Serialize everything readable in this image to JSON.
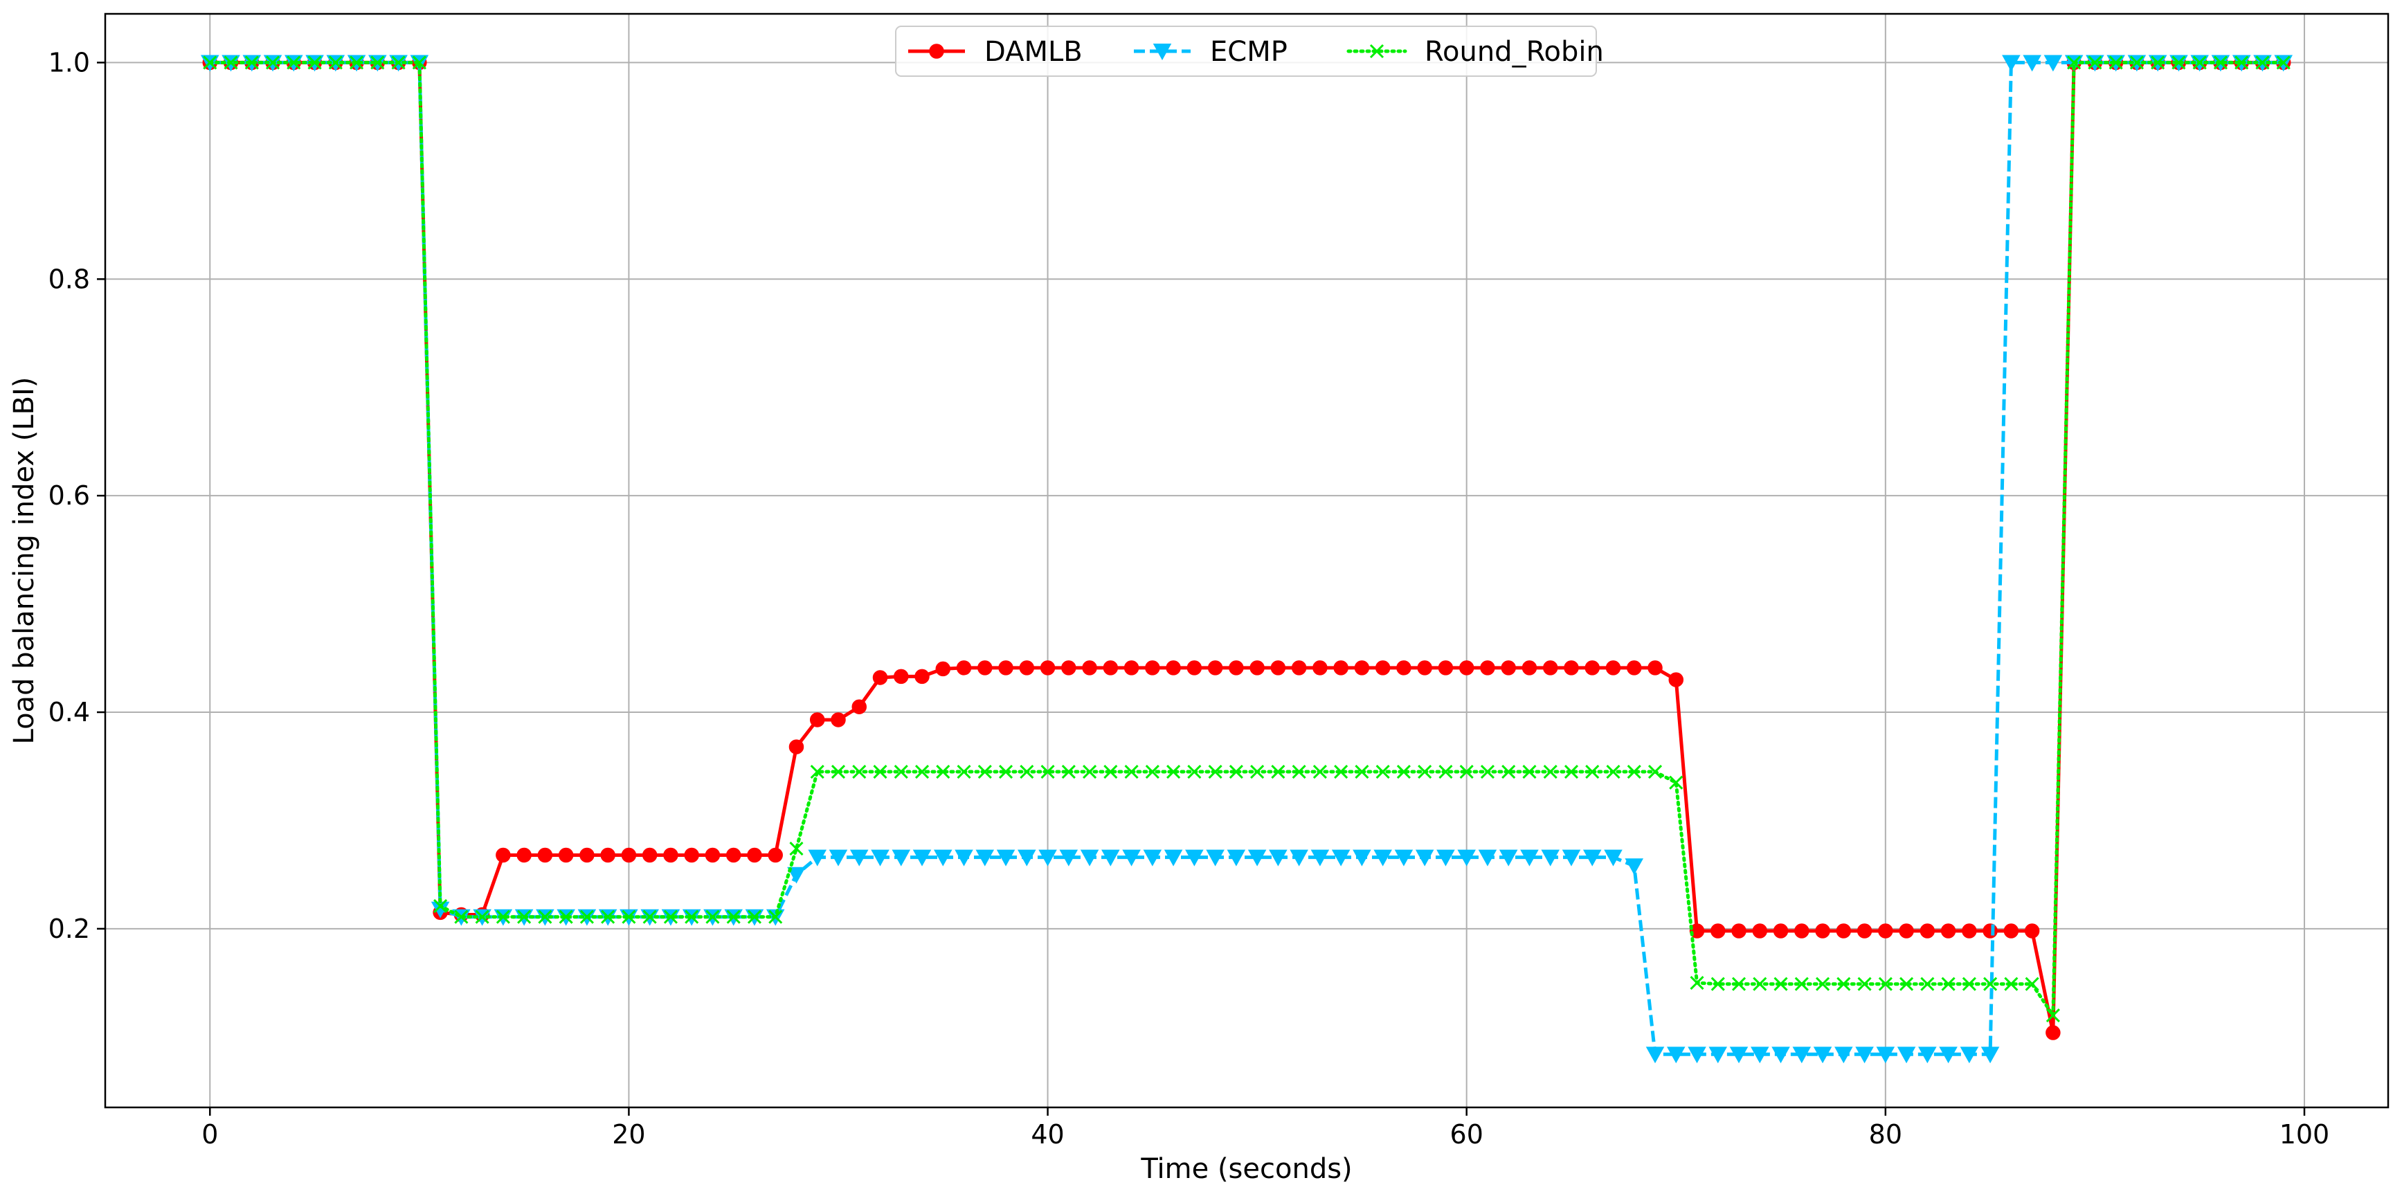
{
  "chart_data": {
    "type": "line",
    "xlabel": "Time (seconds)",
    "ylabel": "Load balancing index (LBI)",
    "xlim": [
      -5,
      104
    ],
    "ylim": [
      0.035,
      1.045
    ],
    "xticks": [
      0,
      20,
      40,
      60,
      80,
      100
    ],
    "yticks": [
      0.2,
      0.4,
      0.6,
      0.8,
      1.0
    ],
    "xtick_labels": [
      "0",
      "20",
      "40",
      "60",
      "80",
      "100"
    ],
    "ytick_labels": [
      "0.2",
      "0.4",
      "0.6",
      "0.8",
      "1.0"
    ],
    "grid": true,
    "legend_position": "top-center",
    "x": [
      0,
      1,
      2,
      3,
      4,
      5,
      6,
      7,
      8,
      9,
      10,
      11,
      12,
      13,
      14,
      15,
      16,
      17,
      18,
      19,
      20,
      21,
      22,
      23,
      24,
      25,
      26,
      27,
      28,
      29,
      30,
      31,
      32,
      33,
      34,
      35,
      36,
      37,
      38,
      39,
      40,
      41,
      42,
      43,
      44,
      45,
      46,
      47,
      48,
      49,
      50,
      51,
      52,
      53,
      54,
      55,
      56,
      57,
      58,
      59,
      60,
      61,
      62,
      63,
      64,
      65,
      66,
      67,
      68,
      69,
      70,
      71,
      72,
      73,
      74,
      75,
      76,
      77,
      78,
      79,
      80,
      81,
      82,
      83,
      84,
      85,
      86,
      87,
      88,
      89,
      90,
      91,
      92,
      93,
      94,
      95,
      96,
      97,
      98,
      99
    ],
    "series": [
      {
        "name": "DAMLB",
        "color": "#ff0000",
        "marker": "circle",
        "line_style": "solid",
        "values": [
          1.0,
          1.0,
          1.0,
          1.0,
          1.0,
          1.0,
          1.0,
          1.0,
          1.0,
          1.0,
          1.0,
          0.215,
          0.213,
          0.213,
          0.268,
          0.268,
          0.268,
          0.268,
          0.268,
          0.268,
          0.268,
          0.268,
          0.268,
          0.268,
          0.268,
          0.268,
          0.268,
          0.268,
          0.368,
          0.393,
          0.393,
          0.405,
          0.432,
          0.433,
          0.433,
          0.44,
          0.441,
          0.441,
          0.441,
          0.441,
          0.441,
          0.441,
          0.441,
          0.441,
          0.441,
          0.441,
          0.441,
          0.441,
          0.441,
          0.441,
          0.441,
          0.441,
          0.441,
          0.441,
          0.441,
          0.441,
          0.441,
          0.441,
          0.441,
          0.441,
          0.441,
          0.441,
          0.441,
          0.441,
          0.441,
          0.441,
          0.441,
          0.441,
          0.441,
          0.441,
          0.43,
          0.198,
          0.198,
          0.198,
          0.198,
          0.198,
          0.198,
          0.198,
          0.198,
          0.198,
          0.198,
          0.198,
          0.198,
          0.198,
          0.198,
          0.198,
          0.198,
          0.198,
          0.104,
          1.0,
          1.0,
          1.0,
          1.0,
          1.0,
          1.0,
          1.0,
          1.0,
          1.0,
          1.0,
          1.0
        ]
      },
      {
        "name": "ECMP",
        "color": "#00bfff",
        "marker": "triangle-down",
        "line_style": "dashed",
        "values": [
          1.0,
          1.0,
          1.0,
          1.0,
          1.0,
          1.0,
          1.0,
          1.0,
          1.0,
          1.0,
          1.0,
          0.218,
          0.211,
          0.211,
          0.211,
          0.211,
          0.211,
          0.211,
          0.211,
          0.211,
          0.211,
          0.211,
          0.211,
          0.211,
          0.211,
          0.211,
          0.211,
          0.211,
          0.25,
          0.266,
          0.266,
          0.266,
          0.266,
          0.266,
          0.266,
          0.266,
          0.266,
          0.266,
          0.266,
          0.266,
          0.266,
          0.266,
          0.266,
          0.266,
          0.266,
          0.266,
          0.266,
          0.266,
          0.266,
          0.266,
          0.266,
          0.266,
          0.266,
          0.266,
          0.266,
          0.266,
          0.266,
          0.266,
          0.266,
          0.266,
          0.266,
          0.266,
          0.266,
          0.266,
          0.266,
          0.266,
          0.266,
          0.266,
          0.258,
          0.084,
          0.084,
          0.084,
          0.084,
          0.084,
          0.084,
          0.084,
          0.084,
          0.084,
          0.084,
          0.084,
          0.084,
          0.084,
          0.084,
          0.084,
          0.084,
          0.084,
          1.0,
          1.0,
          1.0,
          1.0,
          1.0,
          1.0,
          1.0,
          1.0,
          1.0,
          1.0,
          1.0,
          1.0,
          1.0,
          1.0
        ]
      },
      {
        "name": "Round_Robin",
        "color": "#00ee00",
        "marker": "x",
        "line_style": "dotted",
        "values": [
          1.0,
          1.0,
          1.0,
          1.0,
          1.0,
          1.0,
          1.0,
          1.0,
          1.0,
          1.0,
          1.0,
          0.221,
          0.211,
          0.211,
          0.211,
          0.211,
          0.211,
          0.211,
          0.211,
          0.211,
          0.211,
          0.211,
          0.211,
          0.211,
          0.211,
          0.211,
          0.211,
          0.211,
          0.274,
          0.345,
          0.345,
          0.345,
          0.345,
          0.345,
          0.345,
          0.345,
          0.345,
          0.345,
          0.345,
          0.345,
          0.345,
          0.345,
          0.345,
          0.345,
          0.345,
          0.345,
          0.345,
          0.345,
          0.345,
          0.345,
          0.345,
          0.345,
          0.345,
          0.345,
          0.345,
          0.345,
          0.345,
          0.345,
          0.345,
          0.345,
          0.345,
          0.345,
          0.345,
          0.345,
          0.345,
          0.345,
          0.345,
          0.345,
          0.345,
          0.345,
          0.335,
          0.15,
          0.149,
          0.149,
          0.149,
          0.149,
          0.149,
          0.149,
          0.149,
          0.149,
          0.149,
          0.149,
          0.149,
          0.149,
          0.149,
          0.149,
          0.149,
          0.149,
          0.12,
          1.0,
          1.0,
          1.0,
          1.0,
          1.0,
          1.0,
          1.0,
          1.0,
          1.0,
          1.0,
          1.0
        ]
      }
    ]
  }
}
